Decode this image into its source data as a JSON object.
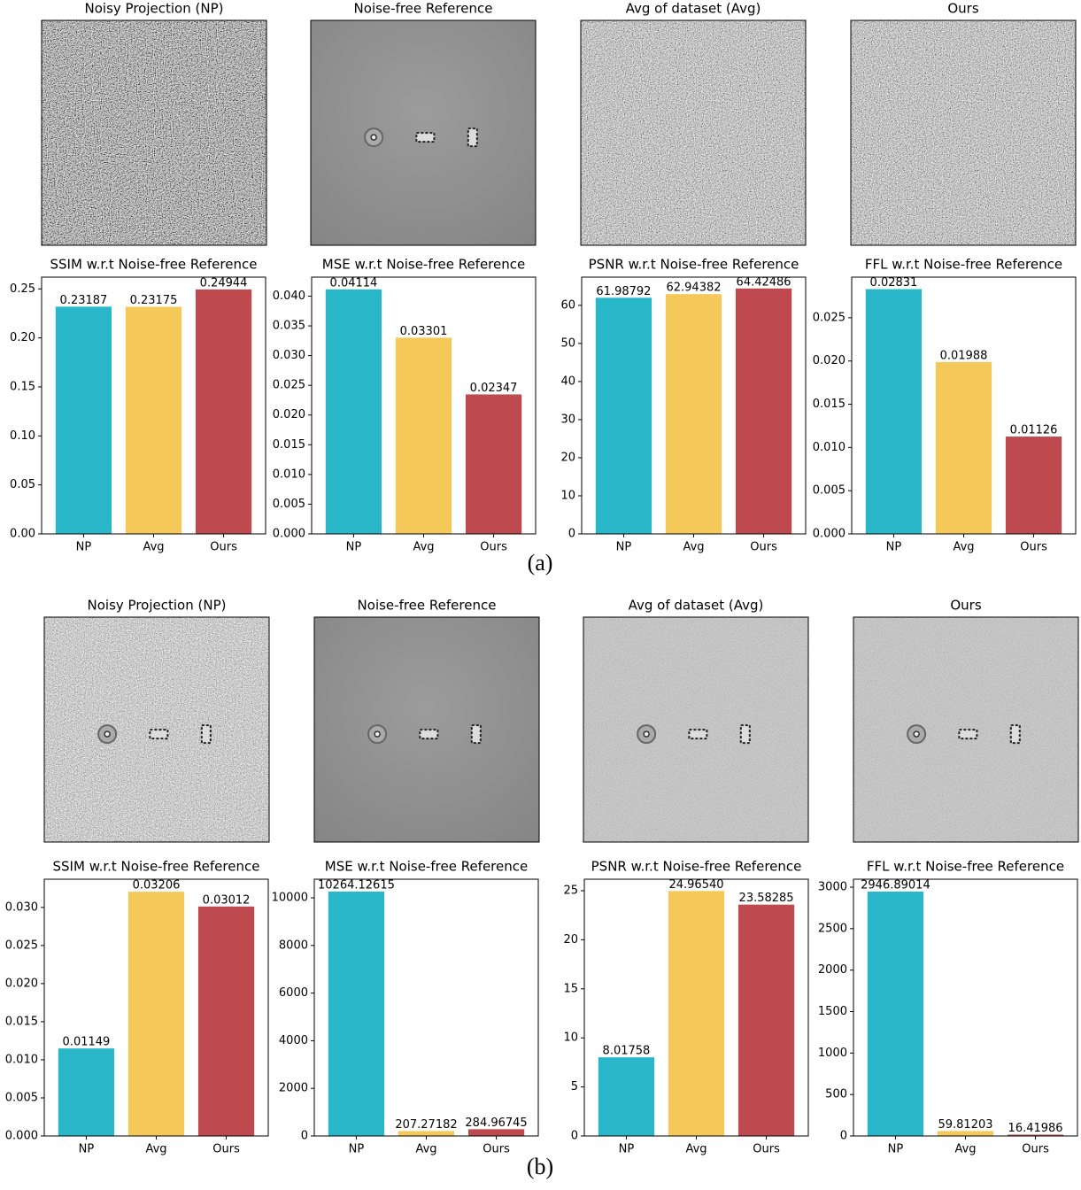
{
  "image_titles": [
    [
      "Noisy Projection (NP)",
      "Noise-free Reference",
      "Avg of dataset (Avg)",
      "Ours"
    ],
    [
      "Noisy Projection (NP)",
      "Noise-free Reference",
      "Avg of dataset (Avg)",
      "Ours"
    ]
  ],
  "panel_labels": [
    "(a)",
    "(b)"
  ],
  "chart_data": [
    {
      "type": "bar",
      "title": "SSIM w.r.t Noise-free Reference",
      "categories": [
        "NP",
        "Avg",
        "Ours"
      ],
      "values": [
        0.23187,
        0.23175,
        0.24944
      ],
      "colors": [
        "#29b6c8",
        "#f4c95a",
        "#be4a50"
      ],
      "ylim": [
        0,
        0.262
      ],
      "yticks": [
        {
          "value": 0,
          "label": "0.00"
        },
        0.05,
        {
          "value": 0.1,
          "label": "0.10"
        },
        0.15,
        {
          "value": 0.2,
          "label": "0.20"
        },
        0.25
      ]
    },
    {
      "type": "bar",
      "title": "MSE w.r.t Noise-free Reference",
      "categories": [
        "NP",
        "Avg",
        "Ours"
      ],
      "values": [
        0.04114,
        0.03301,
        0.02347
      ],
      "colors": [
        "#29b6c8",
        "#f4c95a",
        "#be4a50"
      ],
      "ylim": [
        0,
        0.0432
      ],
      "yticks": [
        {
          "value": 0,
          "label": "0.000"
        },
        0.005,
        {
          "value": 0.01,
          "label": "0.010"
        },
        0.015,
        {
          "value": 0.02,
          "label": "0.020"
        },
        0.025,
        {
          "value": 0.03,
          "label": "0.030"
        },
        0.035,
        {
          "value": 0.04,
          "label": "0.040"
        }
      ]
    },
    {
      "type": "bar",
      "title": "PSNR w.r.t Noise-free Reference",
      "categories": [
        "NP",
        "Avg",
        "Ours"
      ],
      "values": [
        61.98792,
        62.94382,
        64.42486
      ],
      "colors": [
        "#29b6c8",
        "#f4c95a",
        "#be4a50"
      ],
      "ylim": [
        0,
        67.4
      ],
      "yticks": [
        0,
        10,
        20,
        30,
        40,
        50,
        60
      ]
    },
    {
      "type": "bar",
      "title": "FFL w.r.t Noise-free Reference",
      "categories": [
        "NP",
        "Avg",
        "Ours"
      ],
      "values": [
        0.02831,
        0.01988,
        0.01126
      ],
      "colors": [
        "#29b6c8",
        "#f4c95a",
        "#be4a50"
      ],
      "ylim": [
        0,
        0.0297
      ],
      "yticks": [
        {
          "value": 0,
          "label": "0.000"
        },
        0.005,
        {
          "value": 0.01,
          "label": "0.010"
        },
        0.015,
        {
          "value": 0.02,
          "label": "0.020"
        },
        0.025
      ]
    },
    {
      "type": "bar",
      "title": "SSIM w.r.t Noise-free Reference",
      "categories": [
        "NP",
        "Avg",
        "Ours"
      ],
      "values": [
        0.01149,
        0.03206,
        0.03012
      ],
      "colors": [
        "#29b6c8",
        "#f4c95a",
        "#be4a50"
      ],
      "ylim": [
        0,
        0.0337
      ],
      "yticks": [
        {
          "value": 0,
          "label": "0.000"
        },
        0.005,
        {
          "value": 0.01,
          "label": "0.010"
        },
        0.015,
        {
          "value": 0.02,
          "label": "0.020"
        },
        0.025,
        {
          "value": 0.03,
          "label": "0.030"
        }
      ]
    },
    {
      "type": "bar",
      "title": "MSE w.r.t Noise-free Reference",
      "categories": [
        "NP",
        "Avg",
        "Ours"
      ],
      "values": [
        10264.12615,
        207.27182,
        284.96745
      ],
      "colors": [
        "#29b6c8",
        "#f4c95a",
        "#be4a50"
      ],
      "ylim": [
        0,
        10781
      ],
      "yticks": [
        0,
        2000,
        4000,
        6000,
        8000,
        10000
      ]
    },
    {
      "type": "bar",
      "title": "PSNR w.r.t Noise-free Reference",
      "categories": [
        "NP",
        "Avg",
        "Ours"
      ],
      "values": [
        8.01758,
        24.9654,
        23.58285
      ],
      "value_labels": [
        "8.01758",
        "24.96540",
        "23.58285"
      ],
      "colors": [
        "#29b6c8",
        "#f4c95a",
        "#be4a50"
      ],
      "ylim": [
        0,
        26.17
      ],
      "yticks": [
        0,
        5,
        10,
        15,
        20,
        25
      ]
    },
    {
      "type": "bar",
      "title": "FFL w.r.t Noise-free Reference",
      "categories": [
        "NP",
        "Avg",
        "Ours"
      ],
      "values": [
        2946.89014,
        59.81203,
        16.41986
      ],
      "colors": [
        "#29b6c8",
        "#f4c95a",
        "#be4a50"
      ],
      "ylim": [
        0,
        3096
      ],
      "yticks": [
        0,
        500,
        1000,
        1500,
        2000,
        2500,
        3000
      ]
    }
  ]
}
